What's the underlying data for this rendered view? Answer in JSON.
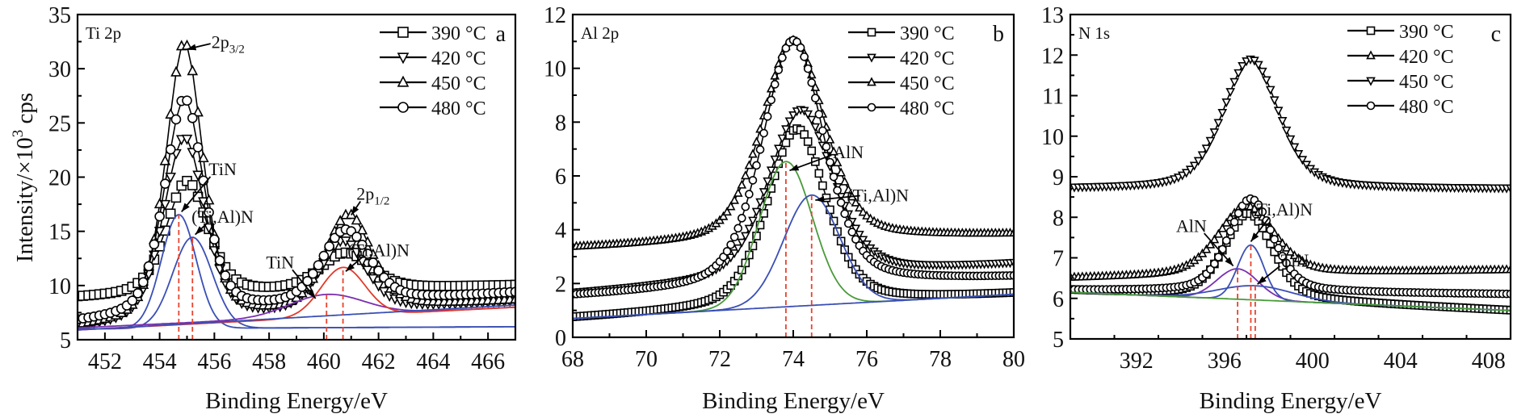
{
  "chart_data": [
    {
      "type": "line",
      "panel_label": "a",
      "inset_label": "Ti 2p",
      "xlabel": "Binding Energy/eV",
      "ylabel": "Intensity/×10³ cps",
      "ylabel_parts": {
        "pre": "Intensity/×10",
        "sup": "3",
        "post": " cps"
      },
      "xlim": [
        451,
        467
      ],
      "ylim": [
        5,
        35
      ],
      "xticks": [
        452,
        454,
        456,
        458,
        460,
        462,
        464,
        466
      ],
      "yticks": [
        5,
        10,
        15,
        20,
        25,
        30,
        35
      ],
      "legend_position": "top-right",
      "series": [
        {
          "name": "390 °C",
          "marker": "square",
          "baseline_left": 8.8,
          "baseline_right": 10.0,
          "peaks": [
            {
              "center": 455.0,
              "height": 10.5,
              "fwhm": 1.8
            },
            {
              "center": 460.8,
              "height": 3.4,
              "fwhm": 2.2
            }
          ]
        },
        {
          "name": "420 °C",
          "marker": "triangle-down",
          "baseline_left": 6.0,
          "baseline_right": 8.5,
          "peaks": [
            {
              "center": 454.9,
              "height": 17.0,
              "fwhm": 1.8
            },
            {
              "center": 460.7,
              "height": 6.5,
              "fwhm": 2.0
            }
          ]
        },
        {
          "name": "450 °C",
          "marker": "triangle-up",
          "baseline_left": 6.0,
          "baseline_right": 8.6,
          "peaks": [
            {
              "center": 454.9,
              "height": 25.7,
              "fwhm": 1.6
            },
            {
              "center": 460.9,
              "height": 8.8,
              "fwhm": 2.0
            }
          ]
        },
        {
          "name": "480 °C",
          "marker": "circle",
          "baseline_left": 6.5,
          "baseline_right": 9.3,
          "peaks": [
            {
              "center": 454.9,
              "height": 20.0,
              "fwhm": 1.7
            },
            {
              "center": 460.8,
              "height": 6.8,
              "fwhm": 2.1
            }
          ]
        }
      ],
      "fits": [
        {
          "name": "TiN 2p3/2",
          "color": "#3a4fb5",
          "center": 454.7,
          "height": 10.5,
          "fwhm": 1.5,
          "baseline": [
            6.0,
            6.2
          ]
        },
        {
          "name": "(Ti,Al)N 2p3/2",
          "color": "#3a4fb5",
          "center": 455.2,
          "height": 8.4,
          "fwhm": 1.7,
          "baseline": [
            6.0,
            6.2
          ]
        },
        {
          "name": "TiN 2p1/2",
          "color": "#7a2fb0",
          "center": 460.1,
          "height": 2.0,
          "fwhm": 3.2,
          "baseline": [
            6.1,
            8.0
          ]
        },
        {
          "name": "(Ti,Al)N 2p1/2",
          "color": "#e03a2a",
          "center": 460.7,
          "height": 4.5,
          "fwhm": 1.9,
          "baseline": [
            5.9,
            8.0
          ]
        },
        {
          "name": "background",
          "color": "#3a4fb5",
          "center": 458,
          "height": 0,
          "fwhm": 1,
          "baseline": [
            5.9,
            8.2
          ]
        }
      ],
      "reference_lines": [
        454.7,
        455.2,
        460.1,
        460.7
      ],
      "annotations": [
        {
          "text": "2p",
          "sub": "3/2",
          "x": 456.5,
          "y": 32.5,
          "target_x": 455.0,
          "target_y": 31.8
        },
        {
          "text": "TiN",
          "x": 456.3,
          "y": 20.8,
          "target_x": 454.8,
          "target_y": 16.8
        },
        {
          "text": "(Ti,Al)N",
          "x": 456.3,
          "y": 16.4,
          "target_x": 455.3,
          "target_y": 14.7
        },
        {
          "text": "2p",
          "sub": "1/2",
          "x": 461.8,
          "y": 18.5,
          "target_x": 461.0,
          "target_y": 16.5
        },
        {
          "text": "TiN",
          "x": 458.4,
          "y": 12.2,
          "target_x": 459.7,
          "target_y": 8.8
        },
        {
          "text": "(Ti,Al)N",
          "x": 462.0,
          "y": 13.3,
          "target_x": 460.8,
          "target_y": 11.3
        }
      ]
    },
    {
      "type": "line",
      "panel_label": "b",
      "inset_label": "Al 2p",
      "xlabel": "Binding Energy/eV",
      "xlim": [
        68,
        80
      ],
      "ylim": [
        0,
        12
      ],
      "xticks": [
        68,
        70,
        72,
        74,
        76,
        78,
        80
      ],
      "yticks": [
        0,
        2,
        4,
        6,
        8,
        10,
        12
      ],
      "legend_position": "top-right",
      "series": [
        {
          "name": "390 °C",
          "marker": "square",
          "baseline_left": 0.7,
          "baseline_right": 1.6,
          "peaks": [
            {
              "center": 74.1,
              "height": 6.6,
              "fwhm": 1.9
            }
          ]
        },
        {
          "name": "420 °C",
          "marker": "triangle-down",
          "baseline_left": 1.6,
          "baseline_right": 2.7,
          "peaks": [
            {
              "center": 74.2,
              "height": 6.3,
              "fwhm": 2.1
            }
          ]
        },
        {
          "name": "450 °C",
          "marker": "triangle-up",
          "baseline_left": 3.3,
          "baseline_right": 3.8,
          "peaks": [
            {
              "center": 74.0,
              "height": 7.5,
              "fwhm": 2.0
            }
          ]
        },
        {
          "name": "480 °C",
          "marker": "circle",
          "baseline_left": 1.5,
          "baseline_right": 2.2,
          "peaks": [
            {
              "center": 74.0,
              "height": 9.2,
              "fwhm": 2.0
            }
          ]
        }
      ],
      "fits": [
        {
          "name": "AlN",
          "color": "#4a9a3a",
          "center": 73.8,
          "height": 5.4,
          "fwhm": 1.7,
          "baseline": [
            0.7,
            1.6
          ]
        },
        {
          "name": "(Ti,Al)N",
          "color": "#3a4fb5",
          "center": 74.5,
          "height": 4.1,
          "fwhm": 1.8,
          "baseline": [
            0.7,
            1.6
          ]
        },
        {
          "name": "background",
          "color": "#3a4fb5",
          "center": 74,
          "height": 0,
          "fwhm": 1,
          "baseline": [
            0.7,
            1.6
          ]
        }
      ],
      "reference_lines": [
        73.8,
        74.5
      ],
      "annotations": [
        {
          "text": "AlN",
          "x": 75.5,
          "y": 6.9,
          "target_x": 73.9,
          "target_y": 6.2
        },
        {
          "text": "(Ti,Al)N",
          "x": 76.3,
          "y": 5.3,
          "target_x": 74.6,
          "target_y": 5.1
        }
      ]
    },
    {
      "type": "line",
      "panel_label": "c",
      "inset_label": "N 1s",
      "xlabel": "Binding Energy/eV",
      "xlim": [
        389,
        409
      ],
      "ylim": [
        5,
        13
      ],
      "xticks": [
        392,
        396,
        400,
        404,
        408
      ],
      "yticks": [
        5,
        6,
        7,
        8,
        9,
        10,
        11,
        12,
        13
      ],
      "legend_position": "top-right",
      "series": [
        {
          "name": "390 °C",
          "marker": "square",
          "baseline_left": 6.2,
          "baseline_right": 5.7,
          "peaks": [
            {
              "center": 397.1,
              "height": 2.1,
              "fwhm": 2.6
            }
          ]
        },
        {
          "name": "420 °C",
          "marker": "triangle-up",
          "baseline_left": 6.5,
          "baseline_right": 6.7,
          "peaks": [
            {
              "center": 397.0,
              "height": 1.7,
              "fwhm": 3.0
            }
          ]
        },
        {
          "name": "450 °C",
          "marker": "triangle-down",
          "baseline_left": 8.7,
          "baseline_right": 8.7,
          "peaks": [
            {
              "center": 397.2,
              "height": 3.2,
              "fwhm": 3.0
            }
          ]
        },
        {
          "name": "480 °C",
          "marker": "circle",
          "baseline_left": 6.2,
          "baseline_right": 6.1,
          "peaks": [
            {
              "center": 397.2,
              "height": 2.3,
              "fwhm": 2.4
            }
          ]
        }
      ],
      "fits": [
        {
          "name": "AlN",
          "color": "#7a2fb0",
          "center": 396.6,
          "height": 0.75,
          "fwhm": 2.2,
          "baseline": [
            6.15,
            5.7
          ]
        },
        {
          "name": "(Ti,Al)N",
          "color": "#3a4fb5",
          "center": 397.2,
          "height": 1.35,
          "fwhm": 1.4,
          "baseline": [
            6.15,
            5.7
          ]
        },
        {
          "name": "TiN",
          "color": "#3a4fb5",
          "center": 397.4,
          "height": 0.35,
          "fwhm": 4.0,
          "baseline": [
            6.15,
            5.7
          ]
        },
        {
          "name": "background",
          "color": "#4a9a3a",
          "center": 397,
          "height": 0,
          "fwhm": 1,
          "baseline": [
            6.15,
            5.7
          ]
        }
      ],
      "reference_lines": [
        396.6,
        397.2,
        397.4
      ],
      "annotations": [
        {
          "text": "AlN",
          "x": 394.5,
          "y": 7.8,
          "target_x": 396.4,
          "target_y": 6.8
        },
        {
          "text": "(Ti,Al)N",
          "x": 398.6,
          "y": 8.2,
          "target_x": 397.2,
          "target_y": 7.4
        },
        {
          "text": "TiN",
          "x": 399.2,
          "y": 6.95,
          "target_x": 397.5,
          "target_y": 6.35
        }
      ]
    }
  ]
}
